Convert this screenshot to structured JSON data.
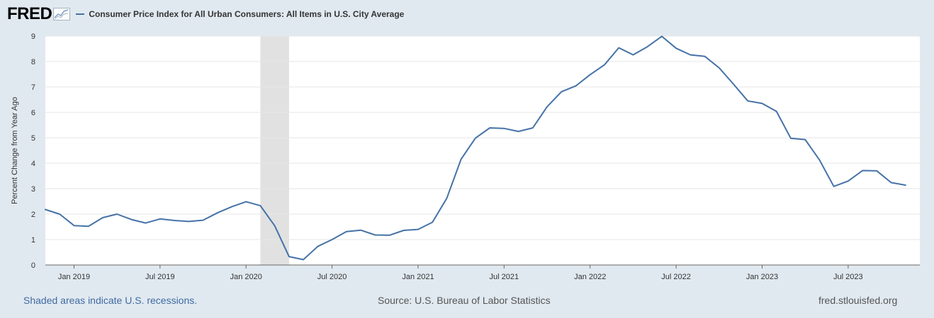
{
  "header": {
    "logo_text": "FRED",
    "series_label": "Consumer Price Index for All Urban Consumers: All Items in U.S. City Average",
    "series_color": "#4572a7"
  },
  "footer": {
    "note": "Shaded areas indicate U.S. recessions.",
    "source": "Source: U.S. Bureau of Labor Statistics",
    "site": "fred.stlouisfed.org"
  },
  "chart_data": {
    "type": "line",
    "title": "Consumer Price Index for All Urban Consumers: All Items in U.S. City Average",
    "xlabel": "",
    "ylabel": "Percent Change from Year Ago",
    "ylim": [
      0,
      9
    ],
    "y_ticks": [
      0,
      1,
      2,
      3,
      4,
      5,
      6,
      7,
      8,
      9
    ],
    "x_start": "2018-11",
    "x_end": "2023-12",
    "x_tick_labels": [
      "Jan 2019",
      "Jul 2019",
      "Jan 2020",
      "Jul 2020",
      "Jan 2021",
      "Jul 2021",
      "Jan 2022",
      "Jul 2022",
      "Jan 2023",
      "Jul 2023"
    ],
    "recession": {
      "start": "2020-02",
      "end": "2020-04"
    },
    "series": [
      {
        "name": "Consumer Price Index for All Urban Consumers: All Items in U.S. City Average",
        "color": "#4572a7",
        "x": [
          "2018-11",
          "2018-12",
          "2019-01",
          "2019-02",
          "2019-03",
          "2019-04",
          "2019-05",
          "2019-06",
          "2019-07",
          "2019-08",
          "2019-09",
          "2019-10",
          "2019-11",
          "2019-12",
          "2020-01",
          "2020-02",
          "2020-03",
          "2020-04",
          "2020-05",
          "2020-06",
          "2020-07",
          "2020-08",
          "2020-09",
          "2020-10",
          "2020-11",
          "2020-12",
          "2021-01",
          "2021-02",
          "2021-03",
          "2021-04",
          "2021-05",
          "2021-06",
          "2021-07",
          "2021-08",
          "2021-09",
          "2021-10",
          "2021-11",
          "2021-12",
          "2022-01",
          "2022-02",
          "2022-03",
          "2022-04",
          "2022-05",
          "2022-06",
          "2022-07",
          "2022-08",
          "2022-09",
          "2022-10",
          "2022-11",
          "2022-12",
          "2023-01",
          "2023-02",
          "2023-03",
          "2023-04",
          "2023-05",
          "2023-06",
          "2023-07",
          "2023-08",
          "2023-09",
          "2023-10",
          "2023-11"
        ],
        "values": [
          2.18,
          2.0,
          1.55,
          1.52,
          1.86,
          2.0,
          1.79,
          1.65,
          1.81,
          1.75,
          1.71,
          1.76,
          2.05,
          2.29,
          2.49,
          2.33,
          1.54,
          0.33,
          0.21,
          0.73,
          1.0,
          1.31,
          1.37,
          1.18,
          1.17,
          1.36,
          1.4,
          1.68,
          2.62,
          4.16,
          4.99,
          5.39,
          5.37,
          5.25,
          5.39,
          6.22,
          6.81,
          7.04,
          7.48,
          7.87,
          8.54,
          8.26,
          8.58,
          8.99,
          8.52,
          8.26,
          8.2,
          7.75,
          7.11,
          6.45,
          6.35,
          6.04,
          4.98,
          4.93,
          4.13,
          3.09,
          3.3,
          3.71,
          3.7,
          3.24,
          3.14
        ]
      }
    ]
  }
}
